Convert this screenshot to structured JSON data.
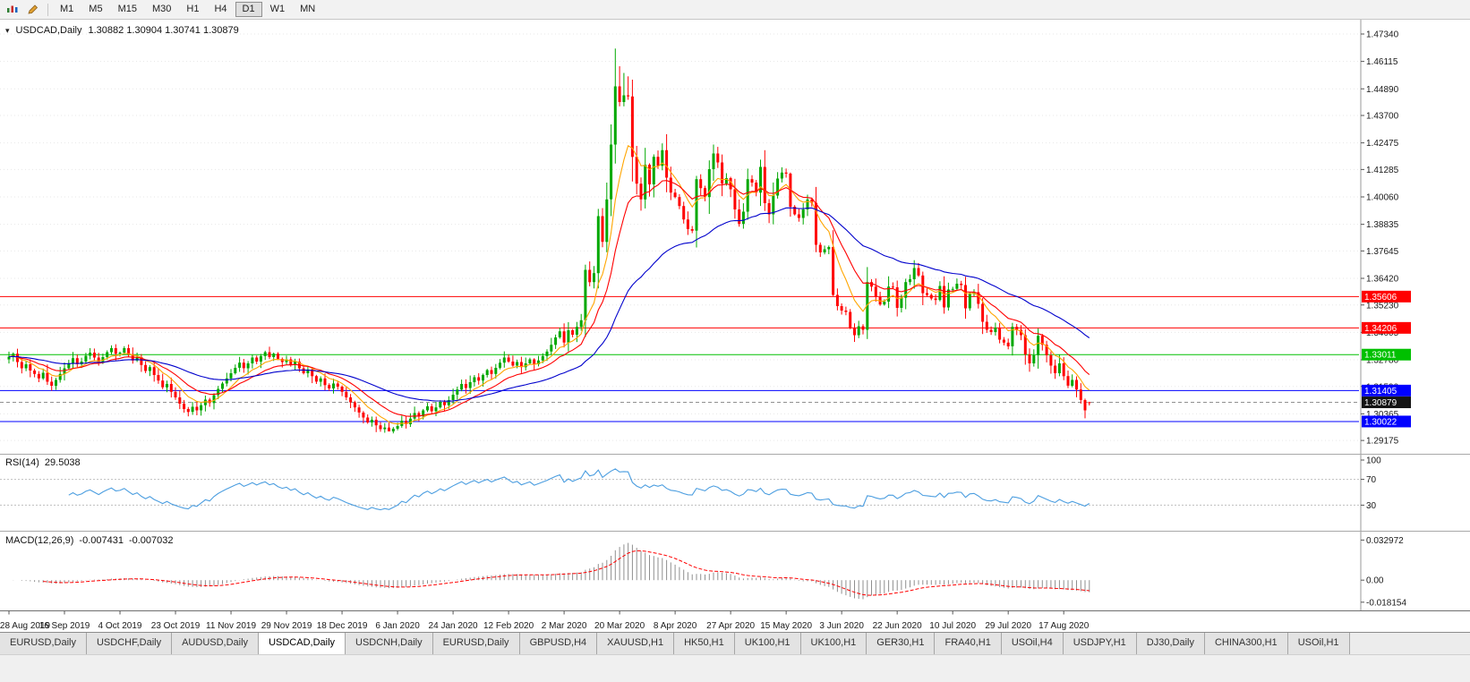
{
  "toolbar": {
    "timeframes": [
      "M1",
      "M5",
      "M15",
      "M30",
      "H1",
      "H4",
      "D1",
      "W1",
      "MN"
    ],
    "active_timeframe": "D1"
  },
  "chart": {
    "title_symbol": "USDCAD,Daily",
    "ohlc_text": "1.30882 1.30904 1.30741 1.30879"
  },
  "price_axis": {
    "ticks": [
      "1.47340",
      "1.46115",
      "1.44890",
      "1.43700",
      "1.42475",
      "1.41285",
      "1.40060",
      "1.38835",
      "1.37645",
      "1.36420",
      "1.35230",
      "1.34005",
      "1.32780",
      "1.31590",
      "1.30365",
      "1.29175"
    ]
  },
  "time_axis": {
    "labels": [
      "28 Aug 2019",
      "16 Sep 2019",
      "4 Oct 2019",
      "23 Oct 2019",
      "11 Nov 2019",
      "29 Nov 2019",
      "18 Dec 2019",
      "6 Jan 2020",
      "24 Jan 2020",
      "12 Feb 2020",
      "2 Mar 2020",
      "20 Mar 2020",
      "8 Apr 2020",
      "27 Apr 2020",
      "15 May 2020",
      "3 Jun 2020",
      "22 Jun 2020",
      "10 Jul 2020",
      "29 Jul 2020",
      "17 Aug 2020"
    ]
  },
  "levels": [
    {
      "label": "1.35606",
      "price": 1.35606,
      "color": "#FF0000"
    },
    {
      "label": "1.34206",
      "price": 1.34206,
      "color": "#FF0000"
    },
    {
      "label": "1.33011",
      "price": 1.33011,
      "color": "#00C000"
    },
    {
      "label": "1.31405",
      "price": 1.31405,
      "color": "#0000FF"
    },
    {
      "label": "1.30022",
      "price": 1.30022,
      "color": "#0000FF"
    }
  ],
  "current_price": {
    "label": "1.30879",
    "price": 1.30879,
    "box_color": "#141414"
  },
  "rsi": {
    "name": "RSI(14)",
    "value": "29.5038",
    "period": 14,
    "axis_labels": [
      "100",
      "70",
      "30"
    ],
    "line_color": "#4C9EE0"
  },
  "macd": {
    "name": "MACD(12,26,9)",
    "main_value": "-0.007431",
    "signal_value": "-0.007032",
    "params": [
      12,
      26,
      9
    ],
    "axis_labels": [
      "0.032972",
      "0.00",
      "-0.018154"
    ],
    "hist_color": "#8F8F8F",
    "signal_color": "#FF0000"
  },
  "tabs": {
    "items": [
      "EURUSD,Daily",
      "USDCHF,Daily",
      "AUDUSD,Daily",
      "USDCAD,Daily",
      "USDCNH,Daily",
      "EURUSD,Daily",
      "GBPUSD,H4",
      "XAUUSD,H1",
      "HK50,H1",
      "UK100,H1",
      "UK100,H1",
      "GER30,H1",
      "FRA40,H1",
      "USOil,H4",
      "USDJPY,H1",
      "DJ30,Daily",
      "CHINA300,H1",
      "USOil,H1"
    ],
    "active_index": 3
  },
  "colors": {
    "bull": "#00A800",
    "bear": "#FF0000",
    "ma_fast": "#FFA500",
    "ma_mid": "#FF0000",
    "ma_slow": "#0000CC",
    "grid": "#E7E7E7",
    "axis_text": "#1A1A1A"
  },
  "chart_data": {
    "type": "candlestick",
    "symbol": "USDCAD",
    "timeframe": "Daily",
    "price_range": [
      1.287,
      1.479
    ],
    "closes": [
      1.3292,
      1.3305,
      1.3268,
      1.324,
      1.3258,
      1.323,
      1.3215,
      1.3195,
      1.322,
      1.318,
      1.3162,
      1.3188,
      1.3215,
      1.324,
      1.3262,
      1.3285,
      1.3258,
      1.327,
      1.3296,
      1.331,
      1.3288,
      1.3265,
      1.329,
      1.3312,
      1.333,
      1.3305,
      1.331,
      1.333,
      1.3302,
      1.3275,
      1.329,
      1.3255,
      1.3228,
      1.3245,
      1.321,
      1.3185,
      1.3155,
      1.317,
      1.3135,
      1.311,
      1.3082,
      1.3058,
      1.3045,
      1.3068,
      1.3052,
      1.3075,
      1.31,
      1.3085,
      1.312,
      1.3148,
      1.3172,
      1.3195,
      1.3218,
      1.3242,
      1.3265,
      1.324,
      1.3262,
      1.3288,
      1.327,
      1.3295,
      1.3312,
      1.329,
      1.3305,
      1.3282,
      1.3268,
      1.328,
      1.3255,
      1.327,
      1.324,
      1.3218,
      1.3235,
      1.3205,
      1.318,
      1.3195,
      1.3165,
      1.315,
      1.3172,
      1.3158,
      1.3135,
      1.311,
      1.3088,
      1.3065,
      1.3042,
      1.302,
      1.2998,
      1.301,
      1.2985,
      1.2968,
      1.2975,
      1.2958,
      1.297,
      1.2982,
      1.3005,
      1.299,
      1.3015,
      1.304,
      1.3025,
      1.3052,
      1.307,
      1.3048,
      1.3065,
      1.309,
      1.3075,
      1.3098,
      1.3122,
      1.3145,
      1.317,
      1.3152,
      1.3178,
      1.32,
      1.3185,
      1.321,
      1.3232,
      1.3215,
      1.3242,
      1.3265,
      1.3288,
      1.327,
      1.3252,
      1.3268,
      1.3245,
      1.3262,
      1.328,
      1.3258,
      1.3275,
      1.3295,
      1.3315,
      1.3345,
      1.3378,
      1.3405,
      1.3355,
      1.341,
      1.339,
      1.3425,
      1.3455,
      1.368,
      1.3625,
      1.3665,
      1.392,
      1.3805,
      1.3995,
      1.424,
      1.45,
      1.443,
      1.446,
      1.4455,
      1.4185,
      1.4065,
      1.3995,
      1.415,
      1.4062,
      1.4185,
      1.4145,
      1.4215,
      1.4092,
      1.4025,
      1.4005,
      1.3965,
      1.3905,
      1.3862,
      1.3855,
      1.4085,
      1.4045,
      1.4005,
      1.413,
      1.42,
      1.416,
      1.4065,
      1.409,
      1.404,
      1.395,
      1.3885,
      1.394,
      1.4085,
      1.407,
      1.4025,
      1.414,
      1.3978,
      1.3928,
      1.4012,
      1.4088,
      1.4115,
      1.411,
      1.3962,
      1.3928,
      1.3912,
      1.395,
      1.3995,
      1.398,
      1.3792,
      1.3758,
      1.3772,
      1.3782,
      1.3568,
      1.3518,
      1.3498,
      1.3492,
      1.3422,
      1.3388,
      1.3428,
      1.3412,
      1.3625,
      1.3605,
      1.3558,
      1.3525,
      1.3538,
      1.3605,
      1.3602,
      1.351,
      1.3555,
      1.3625,
      1.3638,
      1.3688,
      1.3655,
      1.3576,
      1.3568,
      1.3552,
      1.3545,
      1.3608,
      1.3512,
      1.3592,
      1.3595,
      1.3618,
      1.3612,
      1.3508,
      1.3572,
      1.358,
      1.3528,
      1.3448,
      1.3412,
      1.3402,
      1.3422,
      1.3368,
      1.3355,
      1.3338,
      1.3425,
      1.3412,
      1.3388,
      1.3302,
      1.3262,
      1.3298,
      1.3385,
      1.3345,
      1.3298,
      1.3252,
      1.3218,
      1.3262,
      1.3205,
      1.3162,
      1.3188,
      1.3145,
      1.3098,
      1.3052,
      1.30879
    ],
    "overrides": {
      "88": {
        "l": 1.2952
      },
      "89": {
        "l": 1.2958
      },
      "141": {
        "h": 1.433
      },
      "142": {
        "h": 1.4669,
        "l": 1.4155
      },
      "143": {
        "h": 1.459
      },
      "144": {
        "h": 1.456
      },
      "145": {
        "h": 1.4545
      },
      "146": {
        "l": 1.4075
      },
      "253": {
        "o": 1.30882,
        "h": 1.30904,
        "l": 1.30741
      }
    },
    "last_candle": {
      "open": 1.30882,
      "high": 1.30904,
      "low": 1.30741,
      "close": 1.30879
    },
    "moving_averages": [
      {
        "name": "fast",
        "period": 8,
        "color": "#FFA500"
      },
      {
        "name": "mid",
        "period": 16,
        "color": "#FF0000"
      },
      {
        "name": "slow",
        "period": 45,
        "color": "#0000CC"
      }
    ],
    "indicators": {
      "rsi": {
        "period": 14,
        "last_value": 29.5038
      },
      "macd": {
        "fast": 12,
        "slow": 26,
        "signal": 9,
        "last_main": -0.007431,
        "last_signal": -0.007032
      }
    }
  }
}
